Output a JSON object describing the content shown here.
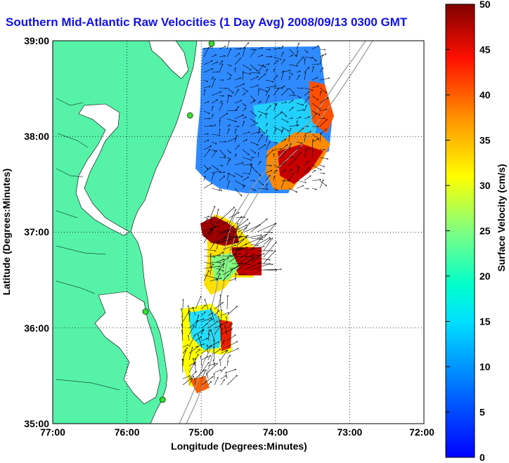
{
  "title": "Southern Mid-Atlantic Raw Velocities (1 Day Avg) 2008/09/13 0300 GMT",
  "axes": {
    "xlabel": "Longitude (Degrees:Minutes)",
    "ylabel": "Latitude (Degrees:Minutes)",
    "x_ticks": [
      "77:00",
      "76:00",
      "75:00",
      "74:00",
      "73:00",
      "72:00"
    ],
    "y_ticks": [
      "39:00",
      "38:00",
      "37:00",
      "36:00",
      "35:00"
    ],
    "x_range": [
      -77,
      -72
    ],
    "y_range": [
      35,
      39
    ],
    "grid": "dotted"
  },
  "colorbar": {
    "label": "Surface Velocity (cm/s)",
    "ticks": [
      "0",
      "5",
      "10",
      "15",
      "20",
      "25",
      "30",
      "35",
      "40",
      "45",
      "50"
    ],
    "range": [
      0,
      50
    ],
    "colormap": "jet"
  },
  "colors": {
    "land": "#55f2a8",
    "ocean": "#ffffff",
    "title": "#1010ee",
    "station": "#33dd33",
    "isobath": "#999999"
  },
  "stations": [
    {
      "lon": -74.86,
      "lat": 38.97
    },
    {
      "lon": -75.15,
      "lat": 38.22
    },
    {
      "lon": -75.75,
      "lat": 36.17
    },
    {
      "lon": -75.52,
      "lat": 35.25
    }
  ]
}
